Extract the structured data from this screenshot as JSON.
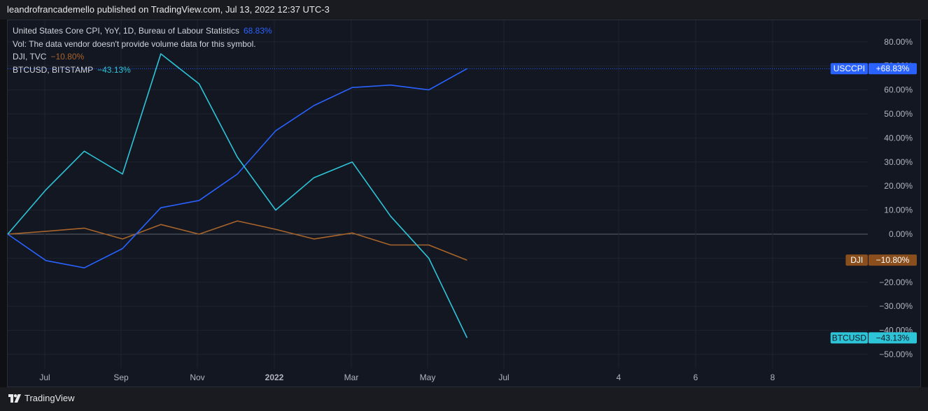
{
  "header": {
    "publisher_line": "leandrofrancademello published on TradingView.com, Jul 13, 2022 12:37 UTC-3"
  },
  "legend": [
    {
      "name": "United States Core CPI, YoY, 1D, Bureau of Labour Statistics",
      "value": "68.83%",
      "color": "#2962ff"
    },
    {
      "name": "Vol: The data vendor doesn't provide volume data for this symbol.",
      "value": "",
      "color": "#d1d4dc"
    },
    {
      "name": "DJI, TVC",
      "value": "−10.80%",
      "color": "#a8642a"
    },
    {
      "name": "BTCUSD, BITSTAMP",
      "value": "−43.13%",
      "color": "#2ec4d8"
    }
  ],
  "footer": {
    "brand": "TradingView"
  },
  "chart_data": {
    "type": "line",
    "x_tick_labels": [
      "Jul",
      "Sep",
      "Nov",
      "2022",
      "Mar",
      "May",
      "Jul",
      "4",
      "6",
      "8"
    ],
    "y_tick_labels": [
      "80.00%",
      "70.00%",
      "60.00%",
      "50.00%",
      "40.00%",
      "30.00%",
      "20.00%",
      "10.00%",
      "0.00%",
      "−10.00%",
      "−20.00%",
      "−30.00%",
      "−40.00%",
      "−50.00%"
    ],
    "ylim": [
      -50,
      80
    ],
    "y_unit": "%",
    "x_points": [
      "2021-06",
      "2021-07",
      "2021-08",
      "2021-09",
      "2021-10",
      "2021-11",
      "2021-12",
      "2022-01",
      "2022-02",
      "2022-03",
      "2022-04",
      "2022-05",
      "2022-06"
    ],
    "series": [
      {
        "name": "USCCPI",
        "color": "#2962ff",
        "last_label": "+68.83%",
        "values": [
          0,
          -11,
          -14,
          -6,
          11,
          14,
          25,
          43,
          53.5,
          61,
          62,
          60,
          68.83
        ]
      },
      {
        "name": "DJI",
        "color": "#a8642a",
        "last_label": "−10.80%",
        "values": [
          0,
          1.2,
          2.5,
          -2,
          4,
          0,
          5.5,
          2,
          -2,
          0.5,
          -4.5,
          -4.5,
          -10.8
        ]
      },
      {
        "name": "BTCUSD",
        "color": "#2ec4d8",
        "last_label": "−43.13%",
        "values": [
          0,
          18.5,
          34.5,
          25,
          75,
          62.5,
          32,
          10,
          23.5,
          30,
          7.5,
          -10,
          -43.13
        ]
      }
    ],
    "grid": true
  }
}
